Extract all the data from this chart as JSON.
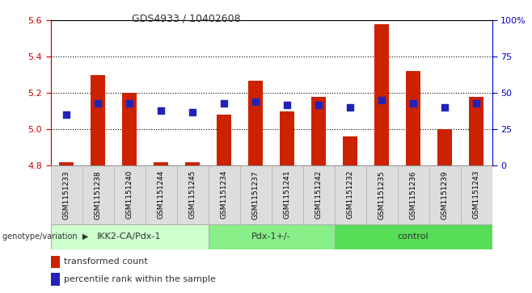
{
  "title": "GDS4933 / 10402608",
  "samples": [
    "GSM1151233",
    "GSM1151238",
    "GSM1151240",
    "GSM1151244",
    "GSM1151245",
    "GSM1151234",
    "GSM1151237",
    "GSM1151241",
    "GSM1151242",
    "GSM1151232",
    "GSM1151235",
    "GSM1151236",
    "GSM1151239",
    "GSM1151243"
  ],
  "bar_bottoms": [
    4.8,
    4.8,
    4.8,
    4.8,
    4.8,
    4.8,
    4.8,
    4.8,
    4.8,
    4.8,
    4.8,
    4.8,
    4.8,
    4.8
  ],
  "bar_tops": [
    4.82,
    5.3,
    5.2,
    4.82,
    4.82,
    5.08,
    5.27,
    5.1,
    5.18,
    4.96,
    5.58,
    5.32,
    5.0,
    5.18
  ],
  "percentile_values": [
    35,
    43,
    43,
    38,
    37,
    43,
    44,
    42,
    42,
    40,
    45,
    43,
    40,
    43
  ],
  "bar_color": "#cc2200",
  "dot_color": "#2222bb",
  "ylim_left": [
    4.8,
    5.6
  ],
  "ylim_right": [
    0,
    100
  ],
  "yticks_left": [
    4.8,
    5.0,
    5.2,
    5.4,
    5.6
  ],
  "yticks_right": [
    0,
    25,
    50,
    75,
    100
  ],
  "ytick_labels_right": [
    "0",
    "25",
    "50",
    "75",
    "100%"
  ],
  "groups": [
    {
      "label": "IKK2-CA/Pdx-1",
      "start": 0,
      "end": 5,
      "color": "#ccffcc"
    },
    {
      "label": "Pdx-1+/-",
      "start": 5,
      "end": 9,
      "color": "#88ee88"
    },
    {
      "label": "control",
      "start": 9,
      "end": 14,
      "color": "#55dd55"
    }
  ],
  "legend_items": [
    {
      "label": "transformed count",
      "color": "#cc2200"
    },
    {
      "label": "percentile rank within the sample",
      "color": "#2222bb"
    }
  ],
  "bar_width": 0.45,
  "dot_size": 35,
  "background_color": "#ffffff",
  "grid_color": "#000000",
  "tick_color_left": "#cc0000",
  "tick_color_right": "#0000cc"
}
